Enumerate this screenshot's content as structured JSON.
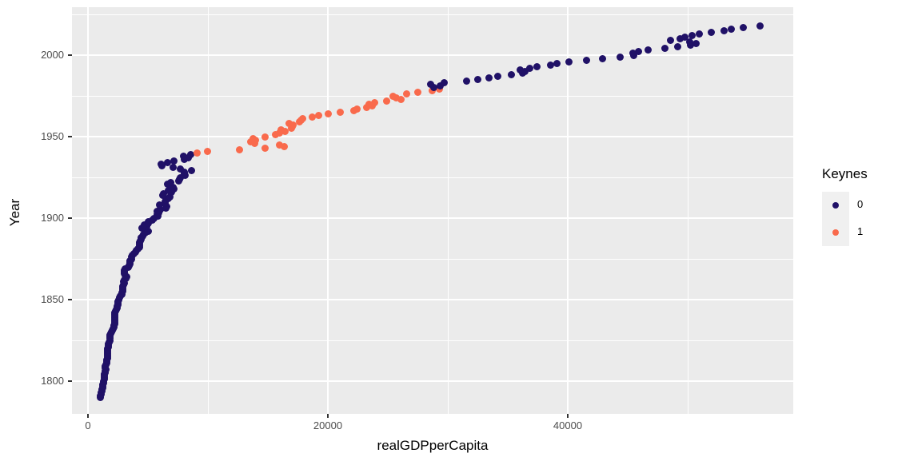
{
  "chart_data": {
    "type": "scatter",
    "title": "",
    "xlabel": "realGDPperCapita",
    "ylabel": "Year",
    "x_ticks": [
      0,
      20000,
      40000
    ],
    "x_minor_ticks": [
      10000,
      30000,
      50000
    ],
    "y_ticks": [
      1800,
      1850,
      1900,
      1950,
      2000
    ],
    "y_minor_ticks": [
      1825,
      1875,
      1925,
      1975,
      2025
    ],
    "xlim": [
      -1800,
      58900
    ],
    "ylim": [
      1779,
      2029
    ],
    "grid": true,
    "panel_background": "#EBEBEB",
    "gridline_color": "#FFFFFF",
    "tick_label_color": "#4D4D4D",
    "point_colors": {
      "keynes0": "#201167",
      "keynes1": "#F96A4C"
    },
    "legend": {
      "title": "Keynes",
      "position": "right",
      "key_fill": "#F0F0F0",
      "entries": [
        {
          "label": "0",
          "color": "#201167"
        },
        {
          "label": "1",
          "color": "#F96A4C"
        }
      ]
    },
    "series": [
      {
        "name": "0",
        "keynes": 0,
        "color": "#201167",
        "points": [
          [
            1790,
            1010
          ],
          [
            1791,
            1050
          ],
          [
            1792,
            1080
          ],
          [
            1793,
            1120
          ],
          [
            1794,
            1160
          ],
          [
            1795,
            1190
          ],
          [
            1796,
            1210
          ],
          [
            1797,
            1220
          ],
          [
            1798,
            1250
          ],
          [
            1799,
            1280
          ],
          [
            1800,
            1300
          ],
          [
            1801,
            1340
          ],
          [
            1802,
            1380
          ],
          [
            1803,
            1370
          ],
          [
            1804,
            1390
          ],
          [
            1805,
            1420
          ],
          [
            1806,
            1450
          ],
          [
            1807,
            1470
          ],
          [
            1808,
            1410
          ],
          [
            1809,
            1460
          ],
          [
            1810,
            1500
          ],
          [
            1811,
            1540
          ],
          [
            1812,
            1540
          ],
          [
            1813,
            1580
          ],
          [
            1814,
            1610
          ],
          [
            1815,
            1630
          ],
          [
            1816,
            1610
          ],
          [
            1817,
            1630
          ],
          [
            1818,
            1650
          ],
          [
            1819,
            1640
          ],
          [
            1820,
            1660
          ],
          [
            1821,
            1690
          ],
          [
            1822,
            1720
          ],
          [
            1823,
            1730
          ],
          [
            1824,
            1770
          ],
          [
            1825,
            1800
          ],
          [
            1826,
            1830
          ],
          [
            1827,
            1850
          ],
          [
            1828,
            1860
          ],
          [
            1829,
            1870
          ],
          [
            1830,
            1950
          ],
          [
            1831,
            2030
          ],
          [
            1832,
            2100
          ],
          [
            1833,
            2150
          ],
          [
            1834,
            2140
          ],
          [
            1835,
            2200
          ],
          [
            1836,
            2240
          ],
          [
            1837,
            2220
          ],
          [
            1838,
            2220
          ],
          [
            1839,
            2260
          ],
          [
            1840,
            2220
          ],
          [
            1841,
            2230
          ],
          [
            1842,
            2240
          ],
          [
            1843,
            2300
          ],
          [
            1844,
            2370
          ],
          [
            1845,
            2400
          ],
          [
            1846,
            2430
          ],
          [
            1847,
            2490
          ],
          [
            1848,
            2530
          ],
          [
            1849,
            2520
          ],
          [
            1850,
            2570
          ],
          [
            1851,
            2650
          ],
          [
            1852,
            2730
          ],
          [
            1853,
            2820
          ],
          [
            1854,
            2860
          ],
          [
            1855,
            2870
          ],
          [
            1856,
            2890
          ],
          [
            1857,
            2880
          ],
          [
            1858,
            2910
          ],
          [
            1859,
            2960
          ],
          [
            1860,
            3000
          ],
          [
            1861,
            2990
          ],
          [
            1862,
            3060
          ],
          [
            1863,
            3170
          ],
          [
            1864,
            3200
          ],
          [
            1865,
            3130
          ],
          [
            1866,
            3030
          ],
          [
            1867,
            3020
          ],
          [
            1868,
            3040
          ],
          [
            1869,
            3100
          ],
          [
            1870,
            3340
          ],
          [
            1871,
            3400
          ],
          [
            1872,
            3470
          ],
          [
            1873,
            3530
          ],
          [
            1874,
            3520
          ],
          [
            1875,
            3600
          ],
          [
            1876,
            3650
          ],
          [
            1877,
            3720
          ],
          [
            1878,
            3800
          ],
          [
            1879,
            3950
          ],
          [
            1880,
            4050
          ],
          [
            1881,
            4150
          ],
          [
            1882,
            4300
          ],
          [
            1883,
            4330
          ],
          [
            1884,
            4320
          ],
          [
            1885,
            4310
          ],
          [
            1886,
            4380
          ],
          [
            1887,
            4460
          ],
          [
            1888,
            4430
          ],
          [
            1889,
            4540
          ],
          [
            1890,
            4660
          ],
          [
            1891,
            4740
          ],
          [
            1892,
            5040
          ],
          [
            1893,
            4690
          ],
          [
            1894,
            4480
          ],
          [
            1895,
            4890
          ],
          [
            1896,
            4710
          ],
          [
            1897,
            5010
          ],
          [
            1898,
            5040
          ],
          [
            1899,
            5380
          ],
          [
            1900,
            5500
          ],
          [
            1901,
            5850
          ],
          [
            1902,
            5780
          ],
          [
            1903,
            5920
          ],
          [
            1904,
            5760
          ],
          [
            1905,
            6020
          ],
          [
            1906,
            6520
          ],
          [
            1907,
            6570
          ],
          [
            1908,
            5980
          ],
          [
            1909,
            6430
          ],
          [
            1910,
            6450
          ],
          [
            1911,
            6520
          ],
          [
            1912,
            6680
          ],
          [
            1913,
            6830
          ],
          [
            1914,
            6230
          ],
          [
            1915,
            6270
          ],
          [
            1916,
            6950
          ],
          [
            1917,
            6730
          ],
          [
            1918,
            7150
          ],
          [
            1919,
            7100
          ],
          [
            1920,
            6920
          ],
          [
            1921,
            6600
          ],
          [
            1922,
            6870
          ],
          [
            1923,
            7590
          ],
          [
            1924,
            7640
          ],
          [
            1925,
            7720
          ],
          [
            1926,
            8070
          ],
          [
            1927,
            8030
          ],
          [
            1928,
            8010
          ],
          [
            1929,
            8600
          ],
          [
            1930,
            7720
          ],
          [
            1931,
            7120
          ],
          [
            1932,
            6170
          ],
          [
            1933,
            6070
          ],
          [
            1934,
            6650
          ],
          [
            1935,
            7170
          ],
          [
            1936,
            8020
          ],
          [
            1937,
            8370
          ],
          [
            1938,
            7980
          ],
          [
            1939,
            8550
          ],
          [
            1980,
            28860
          ],
          [
            1981,
            29350
          ],
          [
            1982,
            28590
          ],
          [
            1983,
            29680
          ],
          [
            1984,
            31560
          ],
          [
            1985,
            32530
          ],
          [
            1986,
            33400
          ],
          [
            1987,
            34190
          ],
          [
            1988,
            35290
          ],
          [
            1989,
            36250
          ],
          [
            1990,
            36400
          ],
          [
            1991,
            36000
          ],
          [
            1992,
            36830
          ],
          [
            1993,
            37440
          ],
          [
            1994,
            38540
          ],
          [
            1995,
            39120
          ],
          [
            1996,
            40130
          ],
          [
            1997,
            41540
          ],
          [
            1998,
            42930
          ],
          [
            1999,
            44380
          ],
          [
            2000,
            45470
          ],
          [
            2001,
            45430
          ],
          [
            2002,
            45870
          ],
          [
            2003,
            46700
          ],
          [
            2004,
            48090
          ],
          [
            2005,
            49180
          ],
          [
            2006,
            50230
          ],
          [
            2007,
            50700
          ],
          [
            2008,
            50180
          ],
          [
            2009,
            48540
          ],
          [
            2010,
            49370
          ],
          [
            2011,
            49790
          ],
          [
            2012,
            50390
          ],
          [
            2013,
            50990
          ],
          [
            2014,
            51960
          ],
          [
            2015,
            53060
          ],
          [
            2016,
            53650
          ],
          [
            2017,
            54650
          ],
          [
            2018,
            56060
          ]
        ]
      },
      {
        "name": "1",
        "keynes": 1,
        "color": "#F96A4C",
        "points": [
          [
            1940,
            9120
          ],
          [
            1941,
            9950
          ],
          [
            1942,
            12660
          ],
          [
            1943,
            14780
          ],
          [
            1944,
            16370
          ],
          [
            1945,
            15960
          ],
          [
            1946,
            13900
          ],
          [
            1947,
            13570
          ],
          [
            1948,
            13960
          ],
          [
            1949,
            13790
          ],
          [
            1950,
            14760
          ],
          [
            1951,
            15630
          ],
          [
            1952,
            15940
          ],
          [
            1953,
            16400
          ],
          [
            1954,
            16070
          ],
          [
            1955,
            16940
          ],
          [
            1956,
            17020
          ],
          [
            1957,
            17110
          ],
          [
            1958,
            16740
          ],
          [
            1959,
            17610
          ],
          [
            1960,
            17760
          ],
          [
            1961,
            17900
          ],
          [
            1962,
            18720
          ],
          [
            1963,
            19250
          ],
          [
            1964,
            20050
          ],
          [
            1965,
            21050
          ],
          [
            1966,
            22140
          ],
          [
            1967,
            22430
          ],
          [
            1968,
            23240
          ],
          [
            1969,
            23700
          ],
          [
            1970,
            23450
          ],
          [
            1971,
            23870
          ],
          [
            1972,
            24900
          ],
          [
            1973,
            26070
          ],
          [
            1974,
            25720
          ],
          [
            1975,
            25440
          ],
          [
            1976,
            26560
          ],
          [
            1977,
            27490
          ],
          [
            1978,
            28680
          ],
          [
            1979,
            29270
          ]
        ]
      }
    ]
  }
}
